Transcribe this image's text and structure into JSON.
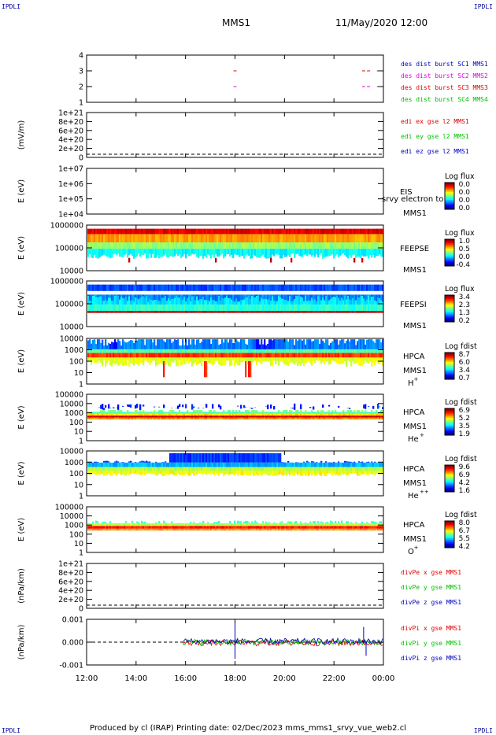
{
  "header": {
    "title": "MMS1",
    "datetime": "11/May/2020 12:00",
    "corner_label": "IPDLI"
  },
  "footer": {
    "text": "Produced by cl (IRAP)    Printing date: 02/Dec/2023    mms_mms1_srvy_vue_web2.cl"
  },
  "time_axis": {
    "ticks": [
      "12:00",
      "14:00",
      "16:00",
      "18:00",
      "20:00",
      "22:00",
      "00:00"
    ],
    "range_hours": [
      12,
      24
    ]
  },
  "colors": {
    "red": "#e00000",
    "green": "#00c000",
    "blue": "#0000c0",
    "magenta": "#e000e0",
    "corner": "#0000a0"
  },
  "chart_data": [
    {
      "type": "line",
      "panel": "burst",
      "yticks": [
        "4",
        "3",
        "2",
        "1"
      ],
      "legend": [
        {
          "text": "des dist burst SC1 MMS1",
          "color": "#0000c0"
        },
        {
          "text": "des dist burst SC2 MMS2",
          "color": "#e000e0"
        },
        {
          "text": "des dist burst SC3 MMS3",
          "color": "#e00000"
        },
        {
          "text": "des dist burst SC4 MMS4",
          "color": "#00c000"
        }
      ],
      "marks": [
        {
          "sc": 4,
          "t": 18.0,
          "color": "#00c000"
        },
        {
          "sc": 4,
          "t": 23.2,
          "color": "#00c000"
        },
        {
          "sc": 4,
          "t": 23.4,
          "color": "#00c000"
        },
        {
          "sc": 4,
          "t": 23.8,
          "color": "#00c000"
        },
        {
          "sc": 3,
          "t": 18.0,
          "color": "#e00000"
        },
        {
          "sc": 3,
          "t": 23.2,
          "color": "#e00000"
        },
        {
          "sc": 3,
          "t": 23.4,
          "color": "#e00000"
        },
        {
          "sc": 3,
          "t": 23.8,
          "color": "#e00000"
        },
        {
          "sc": 2,
          "t": 18.0,
          "color": "#e000e0"
        },
        {
          "sc": 2,
          "t": 23.2,
          "color": "#e000e0"
        },
        {
          "sc": 2,
          "t": 23.4,
          "color": "#e000e0"
        },
        {
          "sc": 2,
          "t": 23.8,
          "color": "#e000e0"
        },
        {
          "sc": 1,
          "t": 18.0,
          "color": "#0000c0"
        },
        {
          "sc": 1,
          "t": 23.2,
          "color": "#0000c0"
        },
        {
          "sc": 1,
          "t": 23.4,
          "color": "#0000c0"
        },
        {
          "sc": 1,
          "t": 23.8,
          "color": "#0000c0"
        }
      ]
    },
    {
      "type": "line",
      "panel": "edi",
      "ylabel": "(mV/m)",
      "yticks": [
        "1e+21",
        "8e+20",
        "6e+20",
        "4e+20",
        "2e+20",
        "0"
      ],
      "legend": [
        {
          "text": "edi ex gse l2 MMS1",
          "color": "#e00000"
        },
        {
          "text": "edi ey gse l2 MMS1",
          "color": "#00c000"
        },
        {
          "text": "edi ez gse l2 MMS1",
          "color": "#0000c0"
        }
      ]
    },
    {
      "type": "heatmap",
      "panel": "eis",
      "ylabel": "E (eV)",
      "yticks": [
        "1e+07",
        "1e+06",
        "1e+05",
        "1e+04"
      ],
      "instrument": [
        "EIS",
        "MMS1"
      ],
      "overlay_text": "srvy electron to",
      "colorbar": {
        "title": "Log flux",
        "ticks": [
          "0.0",
          "0.0",
          "0.0",
          "0.0"
        ]
      }
    },
    {
      "type": "heatmap",
      "panel": "feeps_e",
      "ylabel": "E (eV)",
      "yticks": [
        "1000000",
        "100000",
        "10000"
      ],
      "instrument": [
        "FEEPSE",
        "MMS1"
      ],
      "colorbar": {
        "title": "Log flux",
        "ticks": [
          "1.0",
          "0.5",
          "0.0",
          "-0.4"
        ]
      }
    },
    {
      "type": "heatmap",
      "panel": "feeps_i",
      "ylabel": "E (eV)",
      "yticks": [
        "1000000",
        "100000",
        "10000"
      ],
      "instrument": [
        "FEEPSI",
        "MMS1"
      ],
      "colorbar": {
        "title": "Log flux",
        "ticks": [
          "3.4",
          "2.3",
          "1.3",
          "0.2"
        ]
      }
    },
    {
      "type": "heatmap",
      "panel": "hpca_h",
      "ylabel": "E (eV)",
      "yticks": [
        "10000",
        "1000",
        "100",
        "10",
        "1"
      ],
      "instrument": [
        "HPCA",
        "MMS1"
      ],
      "species": "H",
      "species_sup": "+",
      "colorbar": {
        "title": "Log fdist",
        "ticks": [
          "8.7",
          "6.0",
          "3.4",
          "0.7"
        ]
      }
    },
    {
      "type": "heatmap",
      "panel": "hpca_he",
      "ylabel": "E (eV)",
      "yticks": [
        "100000",
        "10000",
        "1000",
        "100",
        "10",
        "1"
      ],
      "instrument": [
        "HPCA",
        "MMS1"
      ],
      "species": "He",
      "species_sup": "+",
      "colorbar": {
        "title": "Log fdist",
        "ticks": [
          "6.9",
          "5.2",
          "3.5",
          "1.9"
        ]
      }
    },
    {
      "type": "heatmap",
      "panel": "hpca_hepp",
      "ylabel": "E (eV)",
      "yticks": [
        "10000",
        "1000",
        "100",
        "10",
        "1"
      ],
      "instrument": [
        "HPCA",
        "MMS1"
      ],
      "species": "He",
      "species_sup": "++",
      "colorbar": {
        "title": "Log fdist",
        "ticks": [
          "9.6",
          "6.9",
          "4.2",
          "1.6"
        ]
      }
    },
    {
      "type": "heatmap",
      "panel": "hpca_o",
      "ylabel": "E (eV)",
      "yticks": [
        "100000",
        "10000",
        "1000",
        "100",
        "10",
        "1"
      ],
      "instrument": [
        "HPCA",
        "MMS1"
      ],
      "species": "O",
      "species_sup": "+",
      "colorbar": {
        "title": "Log fdist",
        "ticks": [
          "8.0",
          "6.7",
          "5.5",
          "4.2"
        ]
      }
    },
    {
      "type": "line",
      "panel": "divpe",
      "ylabel": "(nPa/km)",
      "yticks": [
        "1e+21",
        "8e+20",
        "6e+20",
        "4e+20",
        "2e+20",
        "0"
      ],
      "legend": [
        {
          "text": "divPe x gse MMS1",
          "color": "#e00000"
        },
        {
          "text": "divPe y gse MMS1",
          "color": "#00c000"
        },
        {
          "text": "divPe z gse MMS1",
          "color": "#0000c0"
        }
      ]
    },
    {
      "type": "line",
      "panel": "divpi",
      "ylabel": "(nPa/km)",
      "yticks": [
        "0.001",
        "0.000",
        "-0.001"
      ],
      "legend": [
        {
          "text": "divPi x gse MMS1",
          "color": "#e00000"
        },
        {
          "text": "divPi y gse MMS1",
          "color": "#00c000"
        },
        {
          "text": "divPi z gse MMS1",
          "color": "#0000c0"
        }
      ],
      "ylim": [
        -0.0015,
        0.0015
      ],
      "data_start_hour": 15.9,
      "spikes": [
        {
          "t": 18.0,
          "y": 0.0016
        },
        {
          "t": 18.0,
          "y": -0.0011
        },
        {
          "t": 23.2,
          "y": 0.001
        },
        {
          "t": 23.3,
          "y": -0.0009
        }
      ]
    }
  ]
}
